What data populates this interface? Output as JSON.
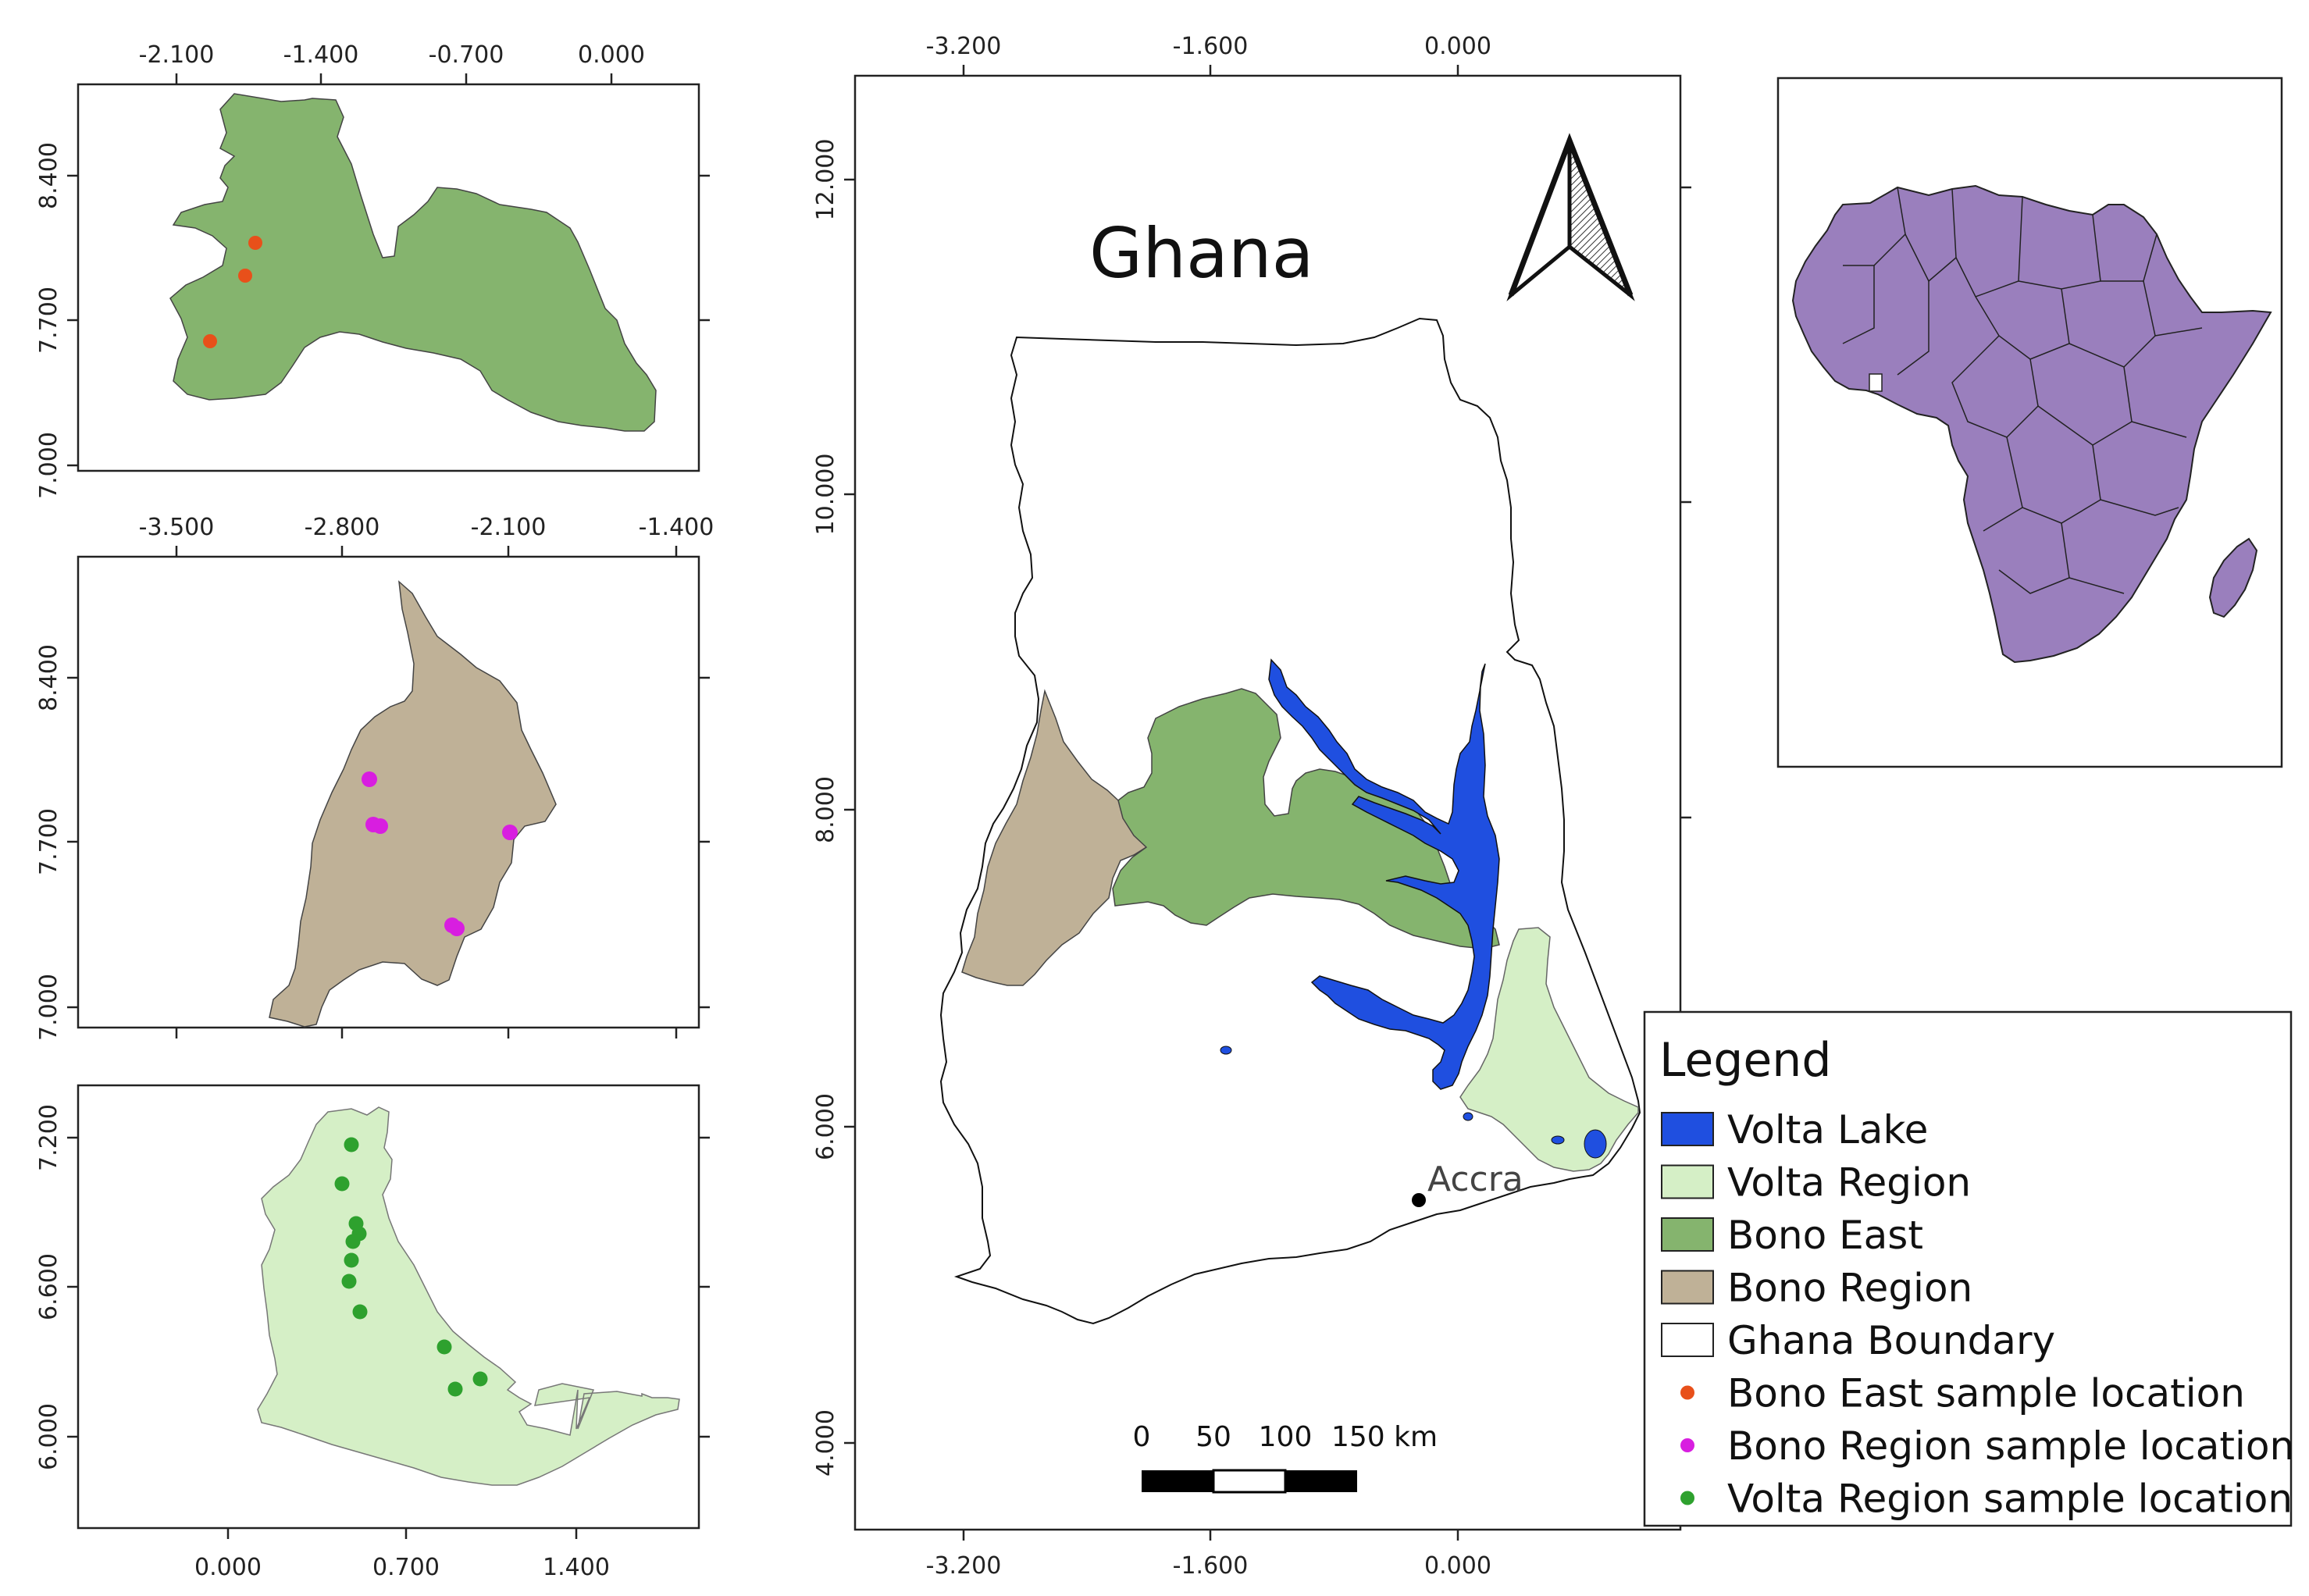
{
  "main_map": {
    "title": "Ghana",
    "city": "Accra",
    "x_ticks": [
      "-3.200",
      "-1.600",
      "0.000"
    ],
    "y_ticks": [
      "12.000",
      "10.000",
      "8.000",
      "6.000",
      "4.000"
    ],
    "scale_bar": {
      "labels": [
        "0",
        "50",
        "100",
        "150 km"
      ]
    }
  },
  "inset_bono_east": {
    "x_ticks": [
      "-2.100",
      "-1.400",
      "-0.700",
      "0.000"
    ],
    "y_ticks": [
      "8.400",
      "7.700",
      "7.000"
    ]
  },
  "inset_bono": {
    "x_ticks": [
      "-3.500",
      "-2.800",
      "-2.100",
      "-1.400"
    ],
    "y_ticks": [
      "8.400",
      "7.700",
      "7.000"
    ]
  },
  "inset_volta": {
    "x_ticks": [
      "0.000",
      "0.700",
      "1.400"
    ],
    "y_ticks": [
      "7.200",
      "6.600",
      "6.000"
    ]
  },
  "legend": {
    "title": "Legend",
    "items": [
      {
        "label": "Volta Lake",
        "kind": "box",
        "color": "#1f4fe0"
      },
      {
        "label": "Volta Region",
        "kind": "box",
        "color": "#d5efc6"
      },
      {
        "label": "Bono East",
        "kind": "box",
        "color": "#85b46e"
      },
      {
        "label": "Bono Region",
        "kind": "box",
        "color": "#bfb197"
      },
      {
        "label": "Ghana Boundary",
        "kind": "box",
        "color": "#ffffff"
      },
      {
        "label": "Bono East sample location",
        "kind": "dot",
        "color": "#e8501a"
      },
      {
        "label": "Bono Region sample location",
        "kind": "dot",
        "color": "#d81ee0"
      },
      {
        "label": "Volta Region sample location",
        "kind": "dot",
        "color": "#2ea12e"
      }
    ]
  },
  "colors": {
    "volta_lake": "#1f4fe0",
    "volta_region": "#d5efc6",
    "bono_east": "#85b46e",
    "bono_region": "#bfb197",
    "africa": "#9a7fbd",
    "bono_east_sample": "#e8501a",
    "bono_sample": "#d81ee0",
    "volta_sample": "#2ea12e"
  }
}
